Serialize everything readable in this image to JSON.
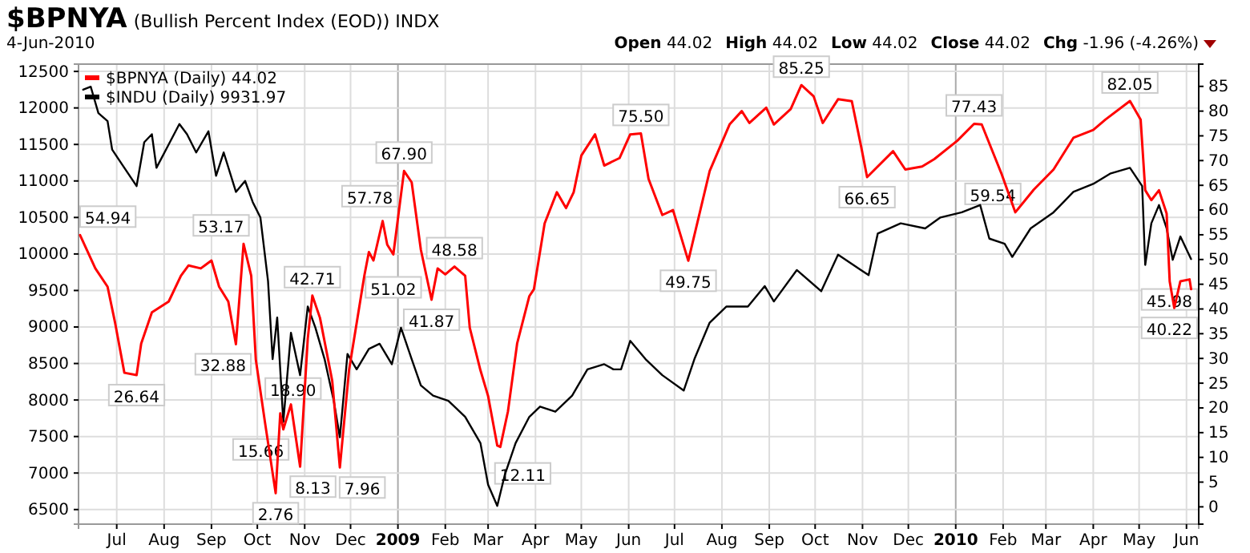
{
  "chart_data": {
    "type": "line",
    "title": "$BPNYA",
    "subtitle": "(Bullish Percent Index (EOD)) INDX",
    "annotations": [
      "4-Jun-2010",
      "Open 44.02",
      "High 44.02",
      "Low 44.02",
      "Close 44.02",
      "Chg -1.96 (-4.26%)"
    ],
    "xlim": [
      "2008-06-06",
      "2010-06-09"
    ],
    "xticks": [
      {
        "value": "2008-07-01",
        "label": "Jul"
      },
      {
        "value": "2008-08-01",
        "label": "Aug"
      },
      {
        "value": "2008-09-01",
        "label": "Sep"
      },
      {
        "value": "2008-10-01",
        "label": "Oct"
      },
      {
        "value": "2008-11-01",
        "label": "Nov"
      },
      {
        "value": "2008-12-01",
        "label": "Dec"
      },
      {
        "value": "2009-01-01",
        "label": "2009"
      },
      {
        "value": "2009-02-01",
        "label": "Feb"
      },
      {
        "value": "2009-03-01",
        "label": "Mar"
      },
      {
        "value": "2009-04-01",
        "label": "Apr"
      },
      {
        "value": "2009-05-01",
        "label": "May"
      },
      {
        "value": "2009-06-01",
        "label": "Jun"
      },
      {
        "value": "2009-07-01",
        "label": "Jul"
      },
      {
        "value": "2009-08-01",
        "label": "Aug"
      },
      {
        "value": "2009-09-01",
        "label": "Sep"
      },
      {
        "value": "2009-10-01",
        "label": "Oct"
      },
      {
        "value": "2009-11-01",
        "label": "Nov"
      },
      {
        "value": "2009-12-01",
        "label": "Dec"
      },
      {
        "value": "2010-01-01",
        "label": "2010"
      },
      {
        "value": "2010-02-01",
        "label": "Feb"
      },
      {
        "value": "2010-03-01",
        "label": "Mar"
      },
      {
        "value": "2010-04-01",
        "label": "Apr"
      },
      {
        "value": "2010-05-01",
        "label": "May"
      },
      {
        "value": "2010-06-01",
        "label": "Jun"
      }
    ],
    "ylim": [
      6300,
      12600
    ],
    "yticks": [
      6500,
      7000,
      7500,
      8000,
      8500,
      9000,
      9500,
      10000,
      10500,
      11000,
      11500,
      12000,
      12500
    ],
    "y2lim": [
      -3.5,
      89.5
    ],
    "y2ticks": [
      0,
      5,
      10,
      15,
      20,
      25,
      30,
      35,
      40,
      45,
      50,
      55,
      60,
      65,
      70,
      75,
      80,
      85
    ],
    "grid": true,
    "legend": "top left",
    "series": [
      {
        "name": "$INDU (Daily) 9931.97",
        "color": "#000000",
        "axis": "y",
        "x": [
          "2008-06-09",
          "2008-06-14",
          "2008-06-19",
          "2008-06-25",
          "2008-06-28",
          "2008-07-05",
          "2008-07-14",
          "2008-07-19",
          "2008-07-24",
          "2008-07-27",
          "2008-08-04",
          "2008-08-11",
          "2008-08-16",
          "2008-08-22",
          "2008-08-30",
          "2008-09-04",
          "2008-09-09",
          "2008-09-17",
          "2008-09-23",
          "2008-09-28",
          "2008-10-03",
          "2008-10-08",
          "2008-10-11",
          "2008-10-14",
          "2008-10-18",
          "2008-10-23",
          "2008-10-29",
          "2008-11-03",
          "2008-11-08",
          "2008-11-14",
          "2008-11-20",
          "2008-11-24",
          "2008-11-29",
          "2008-12-05",
          "2008-12-13",
          "2008-12-20",
          "2008-12-28",
          "2009-01-03",
          "2009-01-10",
          "2009-01-16",
          "2009-01-24",
          "2009-02-03",
          "2009-02-14",
          "2009-02-24",
          "2009-03-01",
          "2009-03-07",
          "2009-03-12",
          "2009-03-19",
          "2009-03-28",
          "2009-04-04",
          "2009-04-14",
          "2009-04-25",
          "2009-05-05",
          "2009-05-16",
          "2009-05-22",
          "2009-05-27",
          "2009-06-02",
          "2009-06-12",
          "2009-06-23",
          "2009-07-07",
          "2009-07-14",
          "2009-07-24",
          "2009-08-04",
          "2009-08-18",
          "2009-08-29",
          "2009-09-04",
          "2009-09-19",
          "2009-10-05",
          "2009-10-16",
          "2009-10-31",
          "2009-11-05",
          "2009-11-11",
          "2009-11-26",
          "2009-12-12",
          "2009-12-22",
          "2010-01-05",
          "2010-01-17",
          "2010-01-23",
          "2010-02-02",
          "2010-02-07",
          "2010-02-19",
          "2010-03-06",
          "2010-03-19",
          "2010-04-01",
          "2010-04-12",
          "2010-04-25",
          "2010-05-03",
          "2010-05-05",
          "2010-05-09",
          "2010-05-14",
          "2010-05-19",
          "2010-05-23",
          "2010-05-28",
          "2010-06-04"
        ],
        "values": [
          12250,
          12290,
          11930,
          11820,
          11430,
          11210,
          10930,
          11530,
          11640,
          11180,
          11500,
          11780,
          11640,
          11390,
          11680,
          11070,
          11390,
          10850,
          11000,
          10710,
          10500,
          9630,
          8560,
          9130,
          7700,
          8920,
          8340,
          9280,
          8990,
          8560,
          7990,
          7490,
          8630,
          8420,
          8700,
          8770,
          8490,
          8990,
          8560,
          8200,
          8060,
          7990,
          7770,
          7410,
          6840,
          6550,
          6980,
          7410,
          7770,
          7910,
          7840,
          8060,
          8420,
          8490,
          8420,
          8420,
          8810,
          8560,
          8340,
          8130,
          8560,
          9060,
          9280,
          9280,
          9560,
          9350,
          9780,
          9490,
          9990,
          9780,
          9710,
          10280,
          10420,
          10350,
          10500,
          10570,
          10670,
          10210,
          10140,
          9960,
          10350,
          10570,
          10850,
          10960,
          11100,
          11180,
          10930,
          9850,
          10420,
          10670,
          10350,
          9920,
          10240,
          9930
        ]
      },
      {
        "name": "$BPNYA (Daily) 44.02",
        "color": "#ff0000",
        "axis": "y2",
        "x": [
          "2008-06-07",
          "2008-06-17",
          "2008-06-25",
          "2008-06-30",
          "2008-07-06",
          "2008-07-14",
          "2008-07-17",
          "2008-07-24",
          "2008-08-04",
          "2008-08-12",
          "2008-08-17",
          "2008-08-25",
          "2008-09-01",
          "2008-09-06",
          "2008-09-12",
          "2008-09-17",
          "2008-09-22",
          "2008-09-27",
          "2008-09-30",
          "2008-10-06",
          "2008-10-13",
          "2008-10-16",
          "2008-10-18",
          "2008-10-23",
          "2008-10-29",
          "2008-11-03",
          "2008-11-06",
          "2008-11-11",
          "2008-11-19",
          "2008-11-24",
          "2008-11-30",
          "2008-12-10",
          "2008-12-13",
          "2008-12-16",
          "2008-12-22",
          "2008-12-25",
          "2008-12-29",
          "2009-01-05",
          "2009-01-10",
          "2009-01-16",
          "2009-01-23",
          "2009-01-27",
          "2009-02-01",
          "2009-02-07",
          "2009-02-14",
          "2009-02-17",
          "2009-02-24",
          "2009-03-01",
          "2009-03-07",
          "2009-03-09",
          "2009-03-14",
          "2009-03-20",
          "2009-03-28",
          "2009-03-31",
          "2009-04-07",
          "2009-04-15",
          "2009-04-21",
          "2009-04-26",
          "2009-05-01",
          "2009-05-10",
          "2009-05-16",
          "2009-05-26",
          "2009-06-02",
          "2009-06-09",
          "2009-06-14",
          "2009-06-23",
          "2009-06-30",
          "2009-07-10",
          "2009-07-24",
          "2009-08-06",
          "2009-08-14",
          "2009-08-19",
          "2009-08-30",
          "2009-09-04",
          "2009-09-15",
          "2009-09-22",
          "2009-09-30",
          "2009-10-06",
          "2009-10-16",
          "2009-10-25",
          "2009-10-31",
          "2009-11-04",
          "2009-11-21",
          "2009-11-29",
          "2009-12-10",
          "2009-12-18",
          "2010-01-02",
          "2010-01-13",
          "2010-01-18",
          "2010-01-31",
          "2010-02-09",
          "2010-02-21",
          "2010-03-06",
          "2010-03-19",
          "2010-04-01",
          "2010-04-09",
          "2010-04-25",
          "2010-05-02",
          "2010-05-05",
          "2010-05-09",
          "2010-05-14",
          "2010-05-19",
          "2010-05-21",
          "2010-05-24",
          "2010-05-28",
          "2010-06-03",
          "2010-06-04"
        ],
        "values": [
          54.94,
          48.2,
          44.5,
          37.1,
          27.1,
          26.64,
          33,
          39.3,
          41.5,
          46.7,
          48.8,
          48.2,
          49.8,
          44.5,
          41.5,
          32.88,
          53.17,
          46.7,
          29.8,
          17.1,
          2.76,
          18.9,
          15.66,
          20.7,
          8.13,
          34,
          42.71,
          38.2,
          25.5,
          7.96,
          27.6,
          46.7,
          51.5,
          49.8,
          57.78,
          53,
          51.02,
          67.9,
          65.6,
          52,
          41.87,
          48.2,
          47,
          48.58,
          46.7,
          36.2,
          27.6,
          22.4,
          12.4,
          12.11,
          19.3,
          33,
          42.6,
          44,
          57.3,
          63.6,
          60.4,
          63.6,
          71,
          75.3,
          69,
          70.5,
          75.3,
          75.5,
          66.3,
          59,
          60,
          49.75,
          67.9,
          77.3,
          80,
          77.6,
          80.7,
          77.3,
          80.4,
          85.25,
          83,
          77.6,
          82.4,
          82,
          73,
          66.65,
          71.9,
          68.2,
          68.8,
          70.3,
          74,
          77.43,
          77.3,
          67.3,
          59.54,
          64.1,
          68.2,
          74.6,
          76.2,
          78.3,
          82.05,
          78.3,
          64,
          62,
          64,
          59.3,
          45.6,
          40.22,
          45.6,
          45.98,
          44
        ],
        "value_labels": [
          "54.94",
          null,
          null,
          null,
          null,
          "26.64",
          null,
          null,
          null,
          null,
          null,
          null,
          null,
          null,
          null,
          "32.88",
          "53.17",
          null,
          null,
          null,
          "2.76",
          "18.90",
          "15.66",
          null,
          "8.13",
          null,
          "42.71",
          null,
          null,
          "7.96",
          null,
          null,
          null,
          null,
          "57.78",
          null,
          "51.02",
          "67.90",
          null,
          null,
          "41.87",
          null,
          null,
          "48.58",
          null,
          null,
          null,
          null,
          null,
          "12.11",
          null,
          null,
          null,
          null,
          null,
          null,
          null,
          null,
          null,
          null,
          null,
          null,
          null,
          "75.50",
          null,
          null,
          null,
          "49.75",
          null,
          null,
          null,
          null,
          null,
          null,
          null,
          "85.25",
          null,
          null,
          null,
          null,
          null,
          "66.65",
          null,
          null,
          null,
          null,
          null,
          "77.43",
          null,
          null,
          "59.54",
          null,
          null,
          null,
          null,
          null,
          "82.05",
          null,
          null,
          null,
          null,
          null,
          null,
          "40.22",
          null,
          "45.98",
          null
        ]
      }
    ]
  }
}
